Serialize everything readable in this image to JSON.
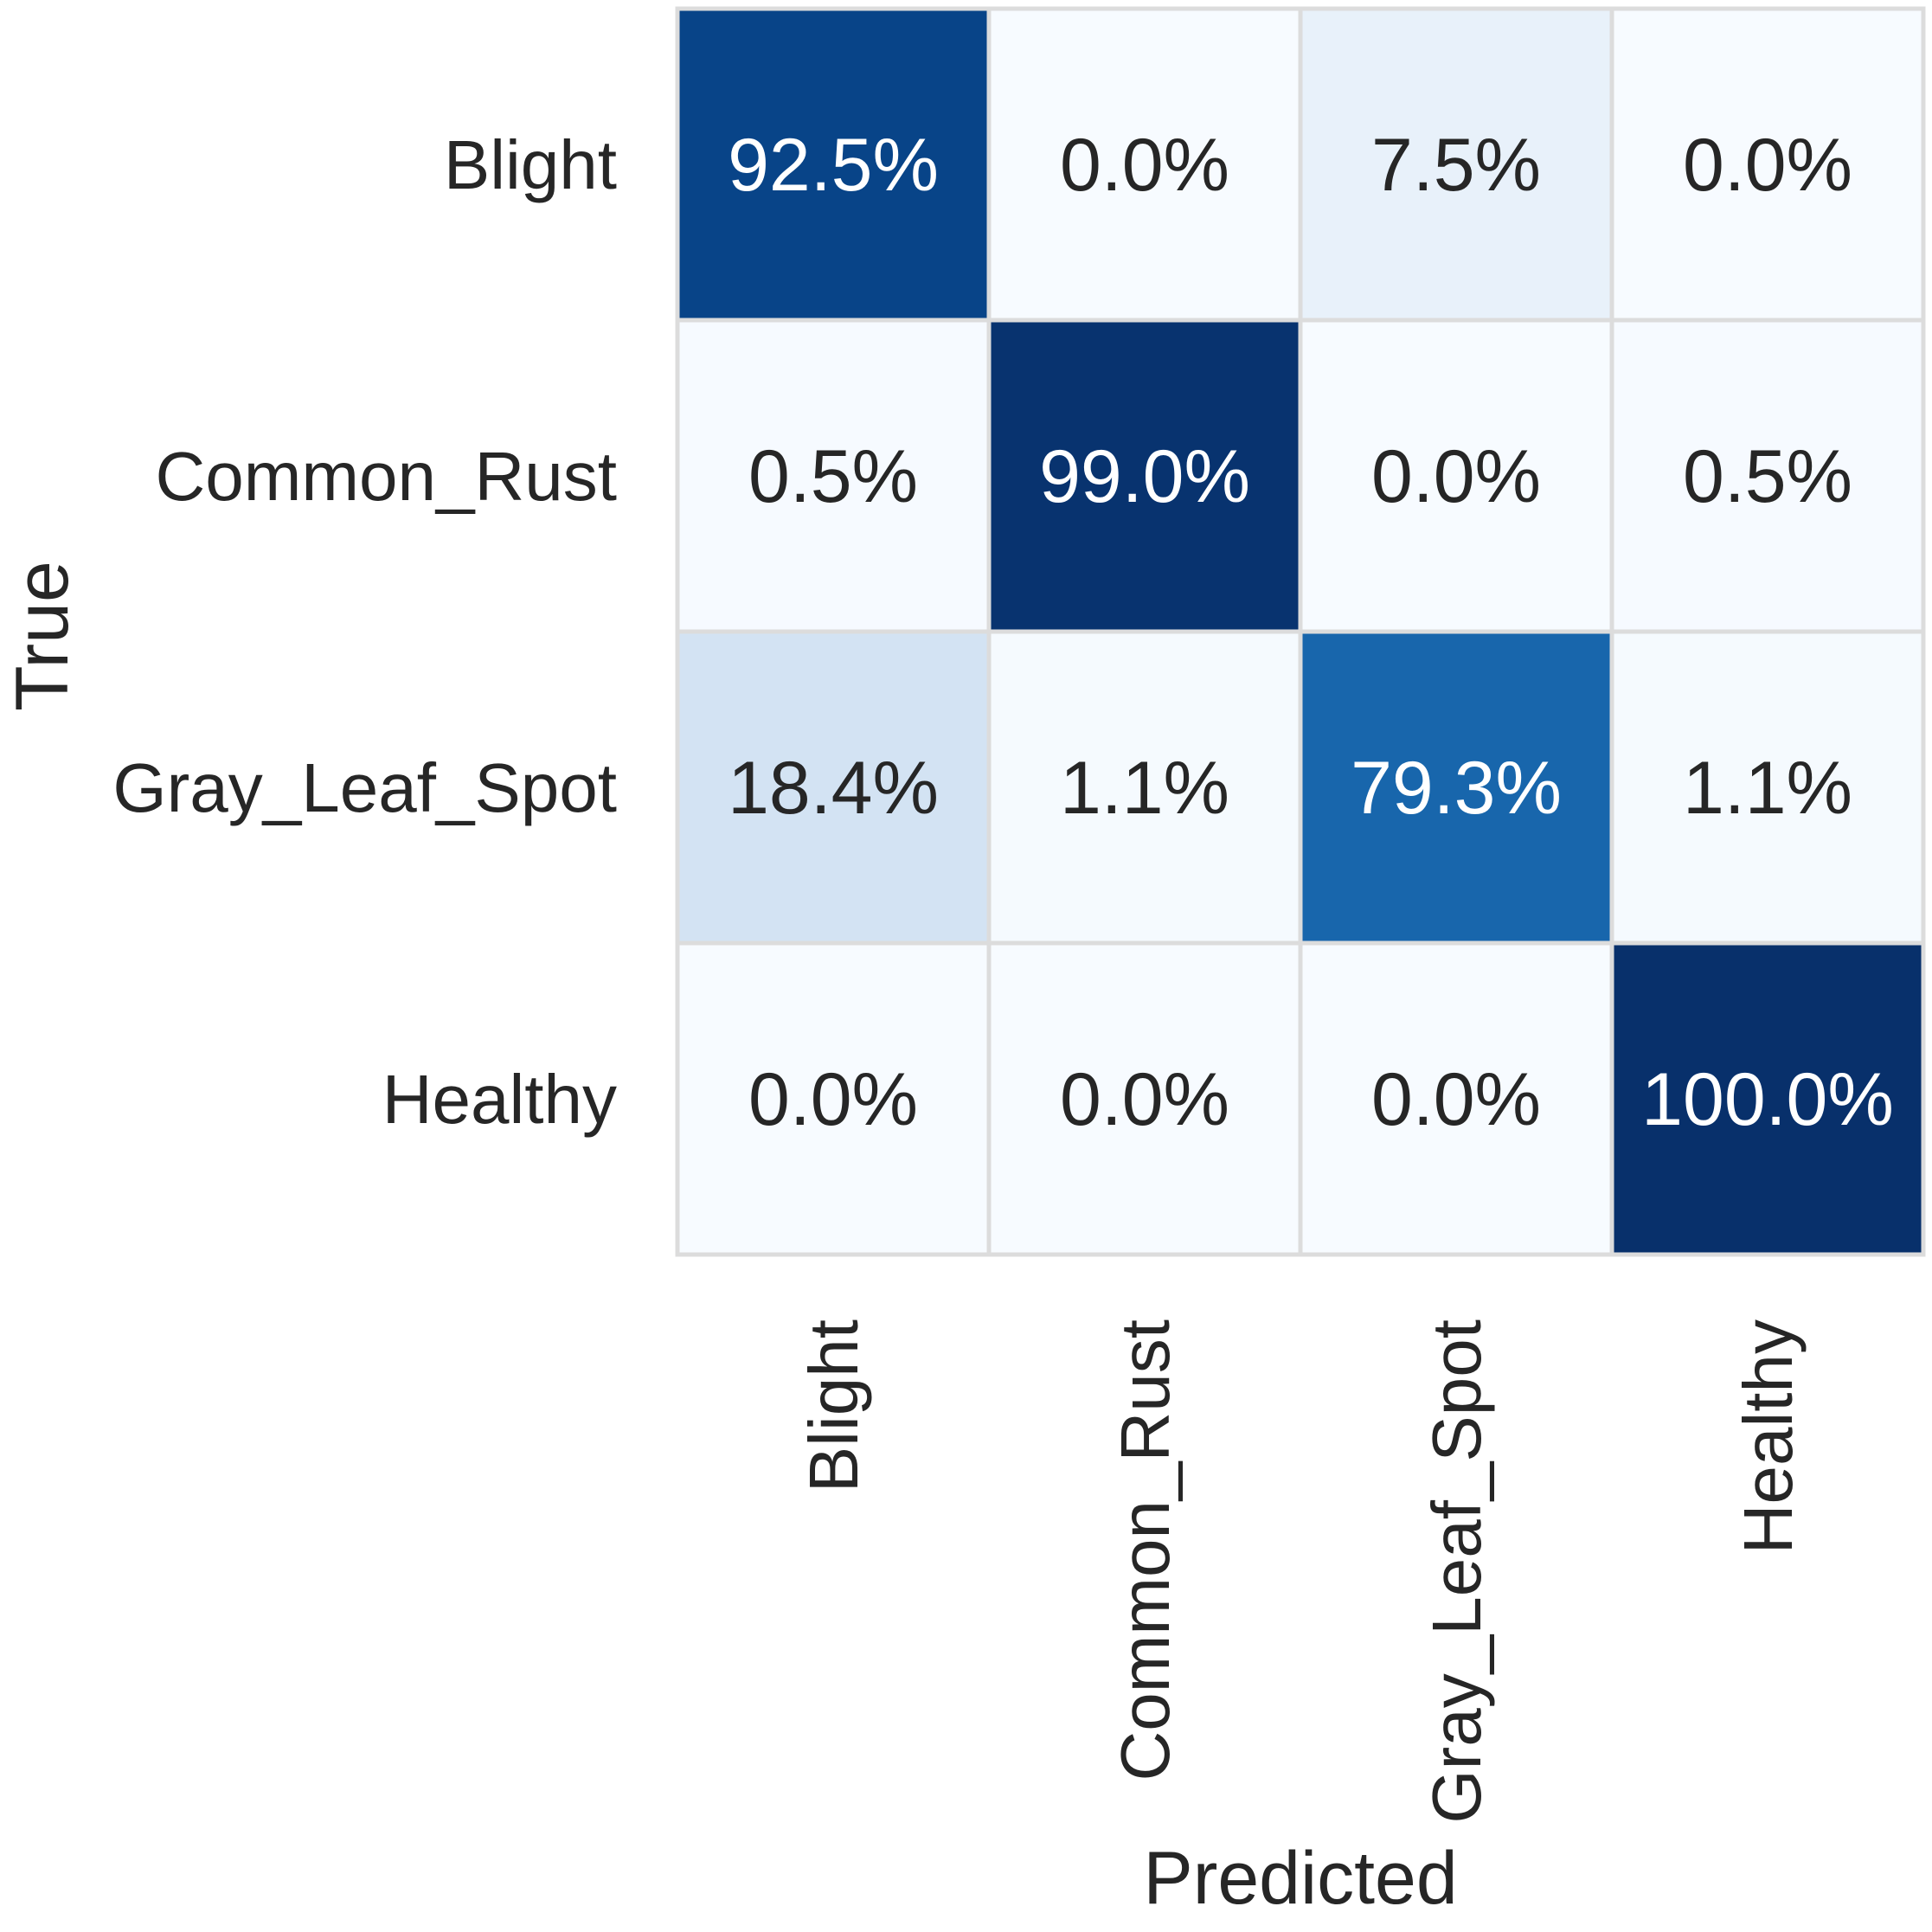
{
  "chart_data": {
    "type": "heatmap",
    "title": "",
    "xlabel": "Predicted",
    "ylabel": "True",
    "x_categories": [
      "Blight",
      "Common_Rust",
      "Gray_Leaf_Spot",
      "Healthy"
    ],
    "y_categories": [
      "Blight",
      "Common_Rust",
      "Gray_Leaf_Spot",
      "Healthy"
    ],
    "values": [
      [
        92.5,
        0.0,
        7.5,
        0.0
      ],
      [
        0.5,
        99.0,
        0.0,
        0.5
      ],
      [
        18.4,
        1.1,
        79.3,
        1.1
      ],
      [
        0.0,
        0.0,
        0.0,
        100.0
      ]
    ],
    "cell_labels": [
      [
        "92.5%",
        "0.0%",
        "7.5%",
        "0.0%"
      ],
      [
        "0.5%",
        "99.0%",
        "0.0%",
        "0.5%"
      ],
      [
        "18.4%",
        "1.1%",
        "79.3%",
        "1.1%"
      ],
      [
        "0.0%",
        "0.0%",
        "0.0%",
        "100.0%"
      ]
    ],
    "value_unit": "%",
    "vmin": 0,
    "vmax": 100,
    "colormap": "Blues",
    "colorbar": false,
    "grid_line_color": "#dcdcdc",
    "text_color_dark": "#262626",
    "text_color_light": "#ffffff"
  }
}
